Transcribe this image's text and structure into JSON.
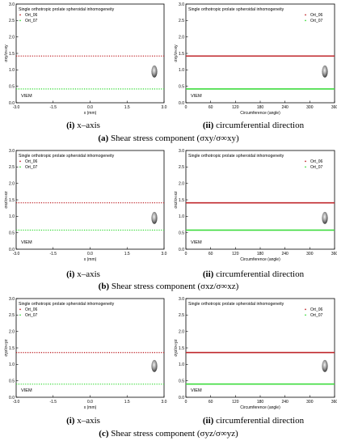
{
  "rows": [
    {
      "row_caption": {
        "letter": "(a)",
        "text": "Shear stress component (σxy/σ∞xy)"
      },
      "panels": [
        {
          "sub": {
            "roman": "(i)",
            "text": "x–axis"
          },
          "inset_label": "VIEM",
          "ylabel": "σxy/σ∞xy",
          "chart_data": {
            "type": "line",
            "title": "Single orthotropic prolate spheroidal inhomogeneity",
            "xlabel": "x (mm)",
            "ylabel": "σxy/σ∞xy",
            "xlim": [
              -3.0,
              3.0
            ],
            "ylim": [
              0.0,
              3.0
            ],
            "xticks": [
              "-3.0",
              "-1.5",
              "0.0",
              "1.5",
              "3.0"
            ],
            "yticks": [
              "0.0",
              "0.5",
              "1.0",
              "1.5",
              "2.0",
              "2.5",
              "3.0"
            ],
            "legend_position": "top-left",
            "series": [
              {
                "name": "Ort_06",
                "color": "#c0282d",
                "style": "dotted",
                "x": [
                  -3.0,
                  3.0
                ],
                "y": [
                  1.42,
                  1.42
                ]
              },
              {
                "name": "Ort_07",
                "color": "#3fdc3f",
                "style": "dotted",
                "x": [
                  -3.0,
                  3.0
                ],
                "y": [
                  0.42,
                  0.42
                ]
              }
            ]
          }
        },
        {
          "sub": {
            "roman": "(ii)",
            "text": "circumferential direction"
          },
          "inset_label": "VIEM",
          "ylabel": "σxy/σ∞xy",
          "chart_data": {
            "type": "line",
            "title": "Single orthotropic prolate spheroidal inhomogeneity",
            "xlabel": "Circumference (angle)",
            "ylabel": "σxy/σ∞xy",
            "xlim": [
              0,
              360
            ],
            "ylim": [
              0.0,
              3.0
            ],
            "xticks": [
              "0",
              "60",
              "120",
              "180",
              "240",
              "300",
              "360"
            ],
            "yticks": [
              "0.0",
              "0.5",
              "1.0",
              "1.5",
              "2.0",
              "2.5",
              "3.0"
            ],
            "legend_position": "top-right",
            "series": [
              {
                "name": "Ort_06",
                "color": "#c0282d",
                "style": "solid",
                "x": [
                  0,
                  360
                ],
                "y": [
                  1.42,
                  1.42
                ]
              },
              {
                "name": "Ort_07",
                "color": "#3fdc3f",
                "style": "solid",
                "x": [
                  0,
                  360
                ],
                "y": [
                  0.42,
                  0.42
                ]
              }
            ]
          }
        }
      ]
    },
    {
      "row_caption": {
        "letter": "(b)",
        "text": "Shear stress component (σxz/σ∞xz)"
      },
      "panels": [
        {
          "sub": {
            "roman": "(i)",
            "text": "x–axis"
          },
          "inset_label": "VIEM",
          "ylabel": "σxz/σ∞xz",
          "chart_data": {
            "type": "line",
            "title": "Single orthotropic prolate spheroidal inhomogeneity",
            "xlabel": "x (mm)",
            "ylabel": "σxz/σ∞xz",
            "xlim": [
              -3.0,
              3.0
            ],
            "ylim": [
              0.0,
              3.0
            ],
            "xticks": [
              "-3.0",
              "-1.5",
              "0.0",
              "1.5",
              "3.0"
            ],
            "yticks": [
              "0.0",
              "0.5",
              "1.0",
              "1.5",
              "2.0",
              "2.5",
              "3.0"
            ],
            "legend_position": "top-left",
            "series": [
              {
                "name": "Ort_06",
                "color": "#c0282d",
                "style": "dotted",
                "x": [
                  -3.0,
                  3.0
                ],
                "y": [
                  1.41,
                  1.41
                ]
              },
              {
                "name": "Ort_07",
                "color": "#3fdc3f",
                "style": "dotted",
                "x": [
                  -3.0,
                  3.0
                ],
                "y": [
                  0.58,
                  0.58
                ]
              }
            ]
          }
        },
        {
          "sub": {
            "roman": "(ii)",
            "text": "circumferential direction"
          },
          "inset_label": "VIEM",
          "ylabel": "σxz/σ∞xz",
          "chart_data": {
            "type": "line",
            "title": "Single orthotropic prolate spheroidal inhomogeneity",
            "xlabel": "Circumference (angle)",
            "ylabel": "σxz/σ∞xz",
            "xlim": [
              0,
              360
            ],
            "ylim": [
              0.0,
              3.0
            ],
            "xticks": [
              "0",
              "60",
              "120",
              "180",
              "240",
              "300",
              "360"
            ],
            "yticks": [
              "0.0",
              "0.5",
              "1.0",
              "1.5",
              "2.0",
              "2.5",
              "3.0"
            ],
            "legend_position": "top-right",
            "series": [
              {
                "name": "Ort_06",
                "color": "#c0282d",
                "style": "solid",
                "x": [
                  0,
                  360
                ],
                "y": [
                  1.41,
                  1.41
                ]
              },
              {
                "name": "Ort_07",
                "color": "#3fdc3f",
                "style": "solid",
                "x": [
                  0,
                  360
                ],
                "y": [
                  0.58,
                  0.58
                ]
              }
            ]
          }
        }
      ]
    },
    {
      "row_caption": {
        "letter": "(c)",
        "text": "Shear stress component (σyz/σ∞yz)"
      },
      "panels": [
        {
          "sub": {
            "roman": "(i)",
            "text": "x–axis"
          },
          "inset_label": "VIEM",
          "ylabel": "σyz/σ∞yz",
          "chart_data": {
            "type": "line",
            "title": "Single orthotropic prolate spheroidal inhomogeneity",
            "xlabel": "x (mm)",
            "ylabel": "σyz/σ∞yz",
            "xlim": [
              -3.0,
              3.0
            ],
            "ylim": [
              0.0,
              3.0
            ],
            "xticks": [
              "-3.0",
              "-1.5",
              "0.0",
              "1.5",
              "3.0"
            ],
            "yticks": [
              "0.0",
              "0.5",
              "1.0",
              "1.5",
              "2.0",
              "2.5",
              "3.0"
            ],
            "legend_position": "top-left",
            "series": [
              {
                "name": "Ort_06",
                "color": "#c0282d",
                "style": "dotted",
                "x": [
                  -3.0,
                  3.0
                ],
                "y": [
                  1.36,
                  1.36
                ]
              },
              {
                "name": "Ort_07",
                "color": "#3fdc3f",
                "style": "dotted",
                "x": [
                  -3.0,
                  3.0
                ],
                "y": [
                  0.4,
                  0.4
                ]
              }
            ]
          }
        },
        {
          "sub": {
            "roman": "(ii)",
            "text": "circumferential direction"
          },
          "inset_label": "VIEM",
          "ylabel": "σyz/σ∞yz",
          "chart_data": {
            "type": "line",
            "title": "Single orthotropic prolate spheroidal inhomogeneity",
            "xlabel": "Circumference (angle)",
            "ylabel": "σyz/σ∞yz",
            "xlim": [
              0,
              360
            ],
            "ylim": [
              0.0,
              3.0
            ],
            "xticks": [
              "0",
              "60",
              "120",
              "180",
              "240",
              "300",
              "360"
            ],
            "yticks": [
              "0.0",
              "0.5",
              "1.0",
              "1.5",
              "2.0",
              "2.5",
              "3.0"
            ],
            "legend_position": "top-right",
            "series": [
              {
                "name": "Ort_06",
                "color": "#c0282d",
                "style": "solid",
                "x": [
                  0,
                  360
                ],
                "y": [
                  1.36,
                  1.36
                ]
              },
              {
                "name": "Ort_07",
                "color": "#3fdc3f",
                "style": "solid",
                "x": [
                  0,
                  360
                ],
                "y": [
                  0.4,
                  0.4
                ]
              }
            ]
          }
        }
      ]
    }
  ]
}
